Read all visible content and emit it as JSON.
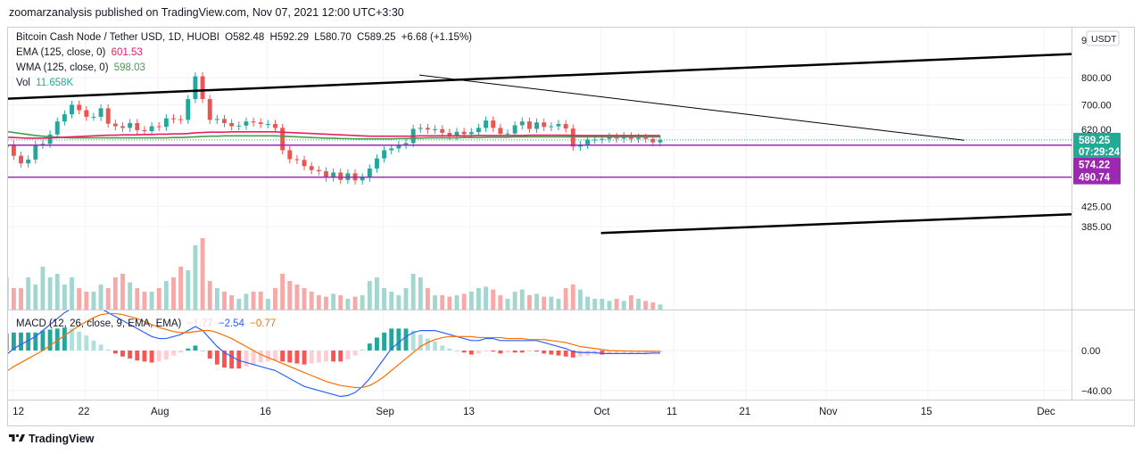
{
  "header": {
    "publisher_line": "zoomarzanalysis published on TradingView.com, Nov 07, 2021 12:00 UTC+3:30"
  },
  "legend": {
    "symbol": "Bitcoin Cash Node / Tether USD, 1D, HUOBI",
    "ohlc": {
      "o_label": "O",
      "o": "582.48",
      "h_label": "H",
      "h": "592.29",
      "l_label": "L",
      "l": "580.70",
      "c_label": "C",
      "c": "589.25",
      "change": "+6.68 (+1.15%)"
    },
    "ema": {
      "label": "EMA (125, close, 0)",
      "value": "601.53"
    },
    "wma": {
      "label": "WMA (125, close, 0)",
      "value": "598.03"
    },
    "vol": {
      "label": "Vol",
      "value": "11.658K"
    },
    "macd": {
      "label": "MACD (12, 26, close, 9, EMA, EMA)",
      "hist": "−1.77",
      "macd": "−2.54",
      "signal": "−0.77"
    }
  },
  "price_axis": {
    "currency_badge": "USDT",
    "top_cut_label": "9",
    "ticks": [
      "800.00",
      "700.00",
      "620.00",
      "425.00",
      "385.00"
    ],
    "last_price": "589.25",
    "countdown": "07:29:24",
    "level_labels": [
      "574.22",
      "490.74"
    ]
  },
  "macd_axis": {
    "ticks": [
      "0.00",
      "−40.00"
    ]
  },
  "time_axis": {
    "labels": [
      "12",
      "22",
      "Aug",
      "16",
      "Sep",
      "13",
      "Oct",
      "11",
      "21",
      "Nov",
      "15",
      "Dec"
    ]
  },
  "footer": {
    "brand": "TradingView"
  },
  "colors": {
    "up": "#26a69a",
    "down": "#ef5350",
    "ema": "#e91e63",
    "wma": "#43a047",
    "level": "#9c27b0",
    "macd": "#2962ff",
    "signal": "#ff6d00",
    "price_badge": "#22ab94"
  },
  "chart_data": {
    "type": "candlestick",
    "title": "Bitcoin Cash Node / Tether USD, 1D, HUOBI",
    "price_scale": "log",
    "ylim": [
      375,
      900
    ],
    "dates": [
      "Jul 12",
      "Jul 22",
      "Aug 1",
      "Aug 16",
      "Sep 1",
      "Sep 13",
      "Oct 1",
      "Oct 11",
      "Oct 21",
      "Nov 1",
      "Nov 15",
      "Dec 1"
    ],
    "close": [
      513,
      492,
      468,
      450,
      425,
      478,
      478,
      515,
      545,
      568,
      576,
      545,
      525,
      535,
      575,
      578,
      605,
      645,
      668,
      700,
      682,
      660,
      660,
      688,
      638,
      630,
      625,
      640,
      618,
      615,
      630,
      628,
      655,
      652,
      650,
      720,
      805,
      720,
      650,
      653,
      640,
      630,
      632,
      645,
      642,
      637,
      637,
      625,
      560,
      536,
      534,
      518,
      508,
      505,
      490,
      502,
      484,
      500,
      483,
      490,
      512,
      538,
      560,
      565,
      575,
      580,
      622,
      625,
      620,
      621,
      610,
      600,
      613,
      606,
      612,
      625,
      648,
      625,
      607,
      608,
      633,
      645,
      622,
      642,
      628,
      630,
      637,
      623,
      570,
      575,
      590,
      590,
      592,
      598,
      593,
      600,
      592,
      596,
      592,
      582,
      589
    ],
    "ema_125": [
      612,
      610,
      608,
      606,
      604,
      602,
      601,
      600,
      599,
      598,
      597,
      596,
      595,
      594,
      594,
      594,
      595,
      596,
      597,
      598,
      599,
      600,
      601,
      602,
      603,
      603,
      604,
      604,
      604,
      605,
      605,
      606,
      606,
      607,
      607,
      608,
      610,
      611,
      612,
      612,
      612,
      613,
      613,
      613,
      613,
      613,
      613,
      613,
      612,
      611,
      610,
      609,
      608,
      607,
      606,
      605,
      604,
      603,
      602,
      601,
      600,
      600,
      600,
      600,
      600,
      600,
      600,
      601,
      601,
      601,
      601,
      601,
      601,
      601,
      601,
      602,
      602,
      602,
      602,
      602,
      602,
      602,
      603,
      603,
      603,
      603,
      603,
      603,
      602,
      602,
      602,
      602,
      602,
      602,
      602,
      602,
      602,
      602,
      602,
      602,
      601.53
    ],
    "wma_125": [
      655,
      650,
      645,
      640,
      636,
      632,
      628,
      624,
      620,
      617,
      614,
      611,
      608,
      605,
      602,
      600,
      598,
      597,
      596,
      595,
      595,
      595,
      595,
      595,
      595,
      595,
      595,
      595,
      595,
      595,
      595,
      595,
      595,
      596,
      596,
      597,
      598,
      599,
      600,
      600,
      601,
      601,
      601,
      601,
      601,
      601,
      601,
      601,
      600,
      599,
      598,
      597,
      596,
      595,
      594,
      594,
      593,
      593,
      592,
      592,
      592,
      592,
      592,
      592,
      593,
      593,
      594,
      594,
      595,
      595,
      595,
      595,
      595,
      596,
      596,
      596,
      597,
      597,
      597,
      597,
      598,
      598,
      598,
      598,
      598,
      598,
      598,
      598,
      598,
      598,
      598,
      598,
      598,
      598,
      598,
      598,
      598,
      598,
      598,
      598,
      598.03
    ],
    "volume_rel": [
      0.17,
      0.19,
      0.2,
      0.22,
      0.2,
      0.35,
      0.5,
      0.45,
      0.55,
      0.5,
      0.45,
      0.3,
      0.3,
      0.45,
      0.35,
      0.6,
      0.45,
      0.5,
      0.35,
      0.45,
      0.3,
      0.25,
      0.25,
      0.35,
      0.3,
      0.45,
      0.5,
      0.38,
      0.3,
      0.25,
      0.25,
      0.3,
      0.4,
      0.45,
      0.6,
      0.55,
      0.9,
      1.0,
      0.4,
      0.3,
      0.25,
      0.2,
      0.15,
      0.22,
      0.25,
      0.25,
      0.15,
      0.3,
      0.5,
      0.4,
      0.35,
      0.3,
      0.25,
      0.2,
      0.18,
      0.22,
      0.2,
      0.15,
      0.18,
      0.2,
      0.4,
      0.45,
      0.3,
      0.25,
      0.2,
      0.3,
      0.5,
      0.45,
      0.3,
      0.2,
      0.2,
      0.18,
      0.2,
      0.22,
      0.25,
      0.3,
      0.32,
      0.28,
      0.2,
      0.15,
      0.25,
      0.28,
      0.2,
      0.22,
      0.18,
      0.18,
      0.15,
      0.3,
      0.35,
      0.28,
      0.18,
      0.15,
      0.15,
      0.12,
      0.15,
      0.12,
      0.2,
      0.15,
      0.12,
      0.1,
      0.07
    ],
    "macd": [
      -5,
      -12,
      -20,
      -28,
      -35,
      -36,
      -30,
      -24,
      -18,
      -10,
      -4,
      2,
      6,
      10,
      14,
      20,
      26,
      32,
      38,
      42,
      44,
      44,
      43,
      42,
      38,
      34,
      30,
      26,
      22,
      18,
      14,
      12,
      12,
      14,
      16,
      20,
      24,
      20,
      12,
      4,
      -2,
      -6,
      -10,
      -12,
      -14,
      -16,
      -18,
      -20,
      -24,
      -28,
      -32,
      -36,
      -38,
      -40,
      -42,
      -44,
      -46,
      -45,
      -42,
      -36,
      -28,
      -18,
      -8,
      2,
      8,
      14,
      18,
      20,
      20,
      20,
      18,
      16,
      14,
      12,
      10,
      10,
      12,
      12,
      10,
      10,
      10,
      10,
      10,
      10,
      8,
      6,
      4,
      2,
      -1,
      -2,
      -2,
      -2,
      -3,
      -3,
      -3,
      -3,
      -3,
      -3,
      -3,
      -2.6,
      -2.54
    ],
    "signal": [
      -20,
      -21,
      -22,
      -23,
      -25,
      -28,
      -30,
      -30,
      -28,
      -25,
      -21,
      -16,
      -12,
      -8,
      -4,
      0,
      5,
      10,
      15,
      20,
      25,
      29,
      33,
      36,
      37,
      37,
      36,
      34,
      32,
      29,
      26,
      23,
      21,
      19,
      18,
      18,
      19,
      20,
      20,
      18,
      15,
      12,
      8,
      4,
      0,
      -4,
      -7,
      -10,
      -13,
      -16,
      -19,
      -22,
      -25,
      -28,
      -31,
      -33,
      -35,
      -36,
      -37,
      -37,
      -35,
      -31,
      -26,
      -20,
      -14,
      -8,
      -2,
      4,
      8,
      11,
      13,
      14,
      14,
      14,
      14,
      13,
      13,
      13,
      13,
      12,
      12,
      12,
      11,
      11,
      11,
      10,
      9,
      8,
      6,
      4,
      3,
      2,
      1,
      0,
      -0.2,
      -0.4,
      -0.5,
      -0.6,
      -0.7,
      -0.75,
      -0.77
    ],
    "levels": [
      574.22,
      490.74
    ],
    "trendlines": [
      {
        "name": "",
        "start": {
          "date": "Jul 10",
          "price": 720
        },
        "end": {
          "date": "Dec 10",
          "price": 905
        }
      },
      {
        "name": "",
        "start": {
          "date": "Sep 6",
          "price": 810
        },
        "end": {
          "date": "Nov 20",
          "price": 588
        }
      },
      {
        "name": "",
        "start": {
          "date": "Oct 1",
          "price": 373
        },
        "end": {
          "date": "Dec 10",
          "price": 412
        }
      }
    ]
  }
}
